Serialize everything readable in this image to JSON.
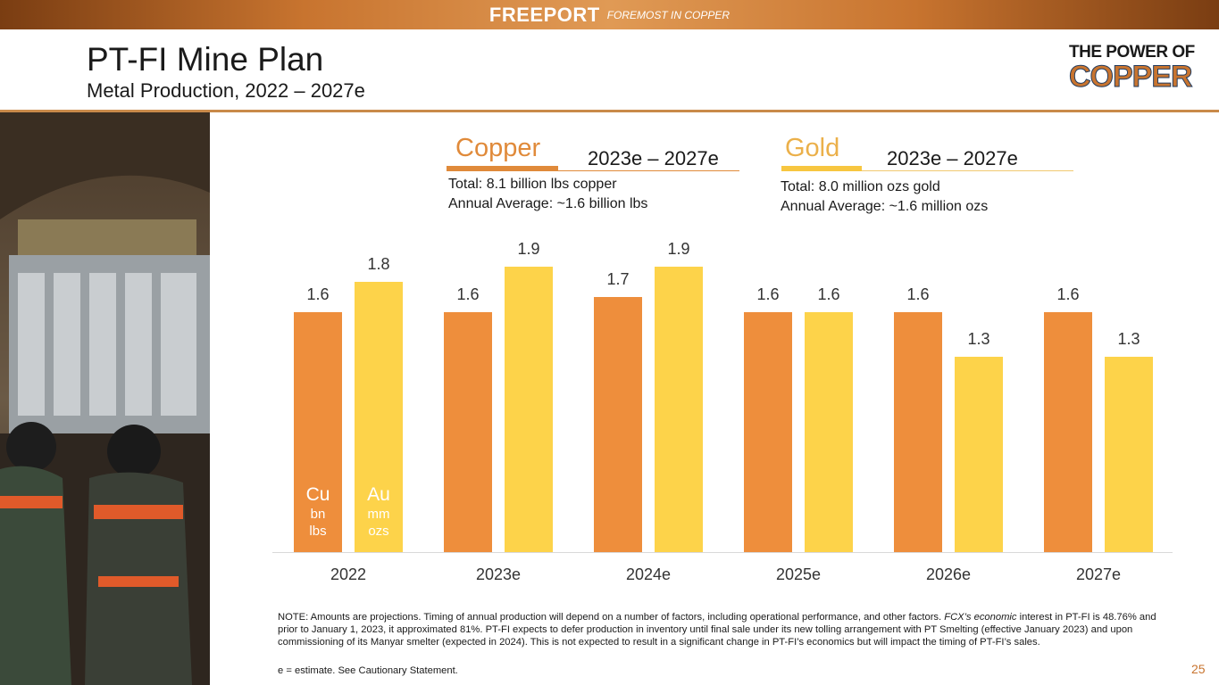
{
  "banner": {
    "brand": "FREEPORT",
    "tagline": "FOREMOST IN COPPER"
  },
  "header": {
    "title": "PT-FI Mine Plan",
    "subtitle": "Metal Production, 2022 – 2027e"
  },
  "logo": {
    "line1": "THE POWER OF",
    "line2": "COPPER"
  },
  "sections": {
    "copper": {
      "label": "Copper",
      "range": "2023e – 2027e",
      "total": "Total: 8.1 billion lbs copper",
      "average": "Annual Average: ~1.6 billion lbs"
    },
    "gold": {
      "label": "Gold",
      "range": "2023e – 2027e",
      "total": "Total: 8.0 million ozs gold",
      "average": "Annual Average: ~1.6 million ozs"
    }
  },
  "colors": {
    "copper": "#ee8e3c",
    "gold": "#fdd34a",
    "copper_label": "#e08a3a",
    "gold_label": "#ebb04a"
  },
  "chart_data": {
    "type": "bar",
    "categories": [
      "2022",
      "2023e",
      "2024e",
      "2025e",
      "2026e",
      "2027e"
    ],
    "series": [
      {
        "name": "Cu",
        "unit": "bn lbs",
        "values": [
          1.6,
          1.6,
          1.7,
          1.6,
          1.6,
          1.6
        ]
      },
      {
        "name": "Au",
        "unit": "mm ozs",
        "values": [
          1.8,
          1.9,
          1.9,
          1.6,
          1.3,
          1.3
        ]
      }
    ],
    "ylim": [
      0,
      1.9
    ]
  },
  "footnote": {
    "note_plain": "NOTE: Amounts are projections. Timing of annual production will depend on a number of factors, including operational performance, and other factors. ",
    "note_italic": "FCX’s economic",
    "note_rest": " interest in PT-FI is 48.76% and prior to January 1, 2023, it approximated 81%. PT-FI expects to defer production in inventory until final sale under its new tolling arrangement with PT Smelting (effective January 2023) and upon commissioning of its Manyar smelter (expected in 2024). This is not expected to result in a significant change in PT-FI’s economics but will impact the timing of PT-FI’s sales.",
    "estimate": "e = estimate. See Cautionary Statement."
  },
  "page_number": "25"
}
